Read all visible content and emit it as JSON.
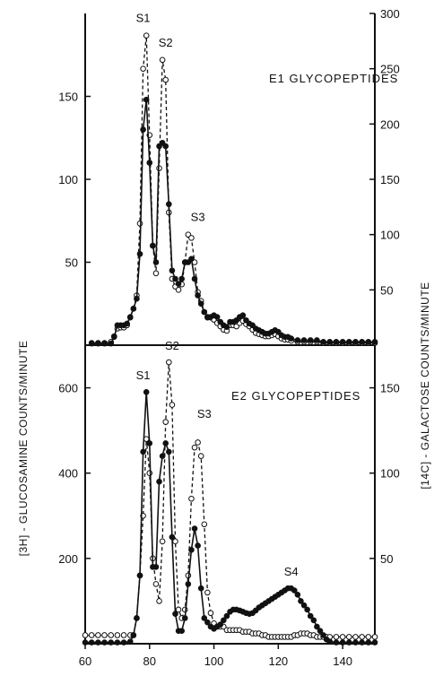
{
  "chart_data": [
    {
      "type": "line",
      "title": "E1 GLYCOPEPTIDES",
      "xlim": [
        60,
        150
      ],
      "ylim_left": [
        0,
        200
      ],
      "ylim_right": [
        0,
        300
      ],
      "left_ticks": [
        "50",
        "100",
        "150"
      ],
      "right_ticks": [
        "50",
        "100",
        "150",
        "200",
        "250",
        "300"
      ],
      "peak_labels": [
        {
          "text": "S1",
          "x": 78,
          "y": 195
        },
        {
          "text": "S2",
          "x": 85,
          "y": 180
        },
        {
          "text": "S3",
          "x": 95,
          "y": 75
        }
      ],
      "series": [
        {
          "axis": "left",
          "marker": "filled",
          "line": "solid",
          "x": [
            62,
            64,
            66,
            68,
            69,
            70,
            71,
            72,
            73,
            74,
            75,
            76,
            77,
            78,
            79,
            80,
            81,
            82,
            83,
            84,
            85,
            86,
            87,
            88,
            89,
            90,
            91,
            92,
            93,
            94,
            95,
            96,
            97,
            98,
            99,
            100,
            101,
            102,
            103,
            104,
            105,
            106,
            107,
            108,
            109,
            110,
            111,
            112,
            113,
            114,
            115,
            116,
            117,
            118,
            119,
            120,
            121,
            122,
            123,
            124,
            126,
            128,
            130,
            132,
            134,
            136,
            138,
            140,
            142,
            144,
            146,
            148,
            150
          ],
          "values": [
            1,
            1,
            1,
            1,
            5,
            12,
            12,
            12,
            13,
            17,
            22,
            28,
            55,
            130,
            148,
            110,
            60,
            50,
            120,
            122,
            120,
            85,
            45,
            40,
            37,
            40,
            50,
            50,
            52,
            40,
            30,
            25,
            20,
            17,
            17,
            18,
            17,
            14,
            12,
            11,
            14,
            14,
            15,
            17,
            18,
            15,
            13,
            12,
            10,
            9,
            8,
            7,
            7,
            8,
            9,
            8,
            6,
            5,
            5,
            4,
            3,
            3,
            3,
            3,
            2,
            2,
            2,
            2,
            2,
            2,
            2,
            2,
            2
          ]
        },
        {
          "axis": "right",
          "marker": "open",
          "line": "dashed",
          "x": [
            62,
            64,
            66,
            68,
            69,
            70,
            71,
            72,
            73,
            74,
            75,
            76,
            77,
            78,
            79,
            80,
            81,
            82,
            83,
            84,
            85,
            86,
            87,
            88,
            89,
            90,
            91,
            92,
            93,
            94,
            95,
            96,
            97,
            98,
            99,
            100,
            101,
            102,
            103,
            104,
            105,
            106,
            107,
            108,
            109,
            110,
            111,
            112,
            113,
            114,
            115,
            116,
            117,
            118,
            119,
            120,
            121,
            122,
            123,
            124,
            126,
            128,
            130,
            132,
            134,
            136,
            138,
            140,
            142,
            144,
            146,
            148,
            150
          ],
          "values": [
            2,
            2,
            2,
            3,
            8,
            15,
            16,
            16,
            18,
            25,
            33,
            45,
            110,
            250,
            280,
            190,
            90,
            65,
            160,
            258,
            240,
            120,
            60,
            53,
            50,
            55,
            75,
            100,
            97,
            75,
            48,
            40,
            30,
            25,
            25,
            23,
            20,
            17,
            14,
            13,
            18,
            18,
            17,
            20,
            22,
            19,
            17,
            14,
            11,
            10,
            9,
            8,
            8,
            9,
            10,
            8,
            6,
            5,
            5,
            4,
            3,
            3,
            3,
            3,
            2,
            2,
            2,
            2,
            2,
            2,
            2,
            2,
            2
          ]
        }
      ]
    },
    {
      "type": "line",
      "title": "E2 GLYCOPEPTIDES",
      "xlabel_ticks": [
        "60",
        "80",
        "100",
        "120",
        "140"
      ],
      "xlim": [
        60,
        150
      ],
      "ylim_left": [
        0,
        700
      ],
      "ylim_right": [
        0,
        175
      ],
      "left_ticks": [
        "200",
        "400",
        "600"
      ],
      "right_ticks": [
        "50",
        "100",
        "150"
      ],
      "peak_labels": [
        {
          "text": "S1",
          "x": 78,
          "y": 620
        },
        {
          "text": "S2",
          "x": 87,
          "y": 690
        },
        {
          "text": "S3",
          "x": 97,
          "y": 530
        },
        {
          "text": "S4",
          "x": 124,
          "y": 160
        }
      ],
      "series": [
        {
          "axis": "left",
          "marker": "filled",
          "line": "solid",
          "x": [
            60,
            62,
            64,
            66,
            68,
            70,
            72,
            74,
            75,
            76,
            77,
            78,
            79,
            80,
            81,
            82,
            83,
            84,
            85,
            86,
            87,
            88,
            89,
            90,
            91,
            92,
            93,
            94,
            95,
            96,
            97,
            98,
            99,
            100,
            101,
            102,
            103,
            104,
            105,
            106,
            107,
            108,
            109,
            110,
            111,
            112,
            113,
            114,
            115,
            116,
            117,
            118,
            119,
            120,
            121,
            122,
            123,
            124,
            125,
            126,
            127,
            128,
            129,
            130,
            131,
            132,
            133,
            134,
            135,
            136,
            138,
            140,
            142,
            144,
            146,
            148,
            150
          ],
          "values": [
            3,
            3,
            3,
            3,
            3,
            3,
            3,
            5,
            20,
            60,
            160,
            450,
            590,
            470,
            180,
            180,
            380,
            440,
            470,
            450,
            250,
            70,
            30,
            30,
            60,
            140,
            220,
            270,
            230,
            130,
            60,
            50,
            40,
            35,
            40,
            45,
            55,
            65,
            75,
            80,
            80,
            78,
            75,
            72,
            70,
            72,
            78,
            85,
            90,
            95,
            100,
            105,
            110,
            115,
            120,
            125,
            130,
            130,
            125,
            115,
            100,
            90,
            80,
            65,
            55,
            40,
            30,
            20,
            10,
            5,
            3,
            3,
            3,
            3,
            3,
            3,
            3
          ]
        },
        {
          "axis": "right",
          "marker": "open",
          "line": "dashed",
          "x": [
            60,
            62,
            64,
            66,
            68,
            70,
            72,
            74,
            75,
            76,
            77,
            78,
            79,
            80,
            81,
            82,
            83,
            84,
            85,
            86,
            87,
            88,
            89,
            90,
            91,
            92,
            93,
            94,
            95,
            96,
            97,
            98,
            99,
            100,
            101,
            102,
            103,
            104,
            105,
            106,
            107,
            108,
            109,
            110,
            111,
            112,
            113,
            114,
            115,
            116,
            117,
            118,
            119,
            120,
            121,
            122,
            123,
            124,
            125,
            126,
            127,
            128,
            129,
            130,
            131,
            132,
            133,
            134,
            135,
            136,
            138,
            140,
            142,
            144,
            146,
            148,
            150
          ],
          "values": [
            5,
            5,
            5,
            5,
            5,
            5,
            5,
            5,
            5,
            15,
            40,
            75,
            120,
            100,
            50,
            35,
            25,
            60,
            130,
            165,
            140,
            60,
            20,
            15,
            20,
            40,
            85,
            115,
            118,
            110,
            70,
            30,
            18,
            12,
            10,
            10,
            10,
            8,
            8,
            8,
            8,
            8,
            7,
            7,
            7,
            6,
            6,
            6,
            5,
            5,
            4,
            4,
            4,
            4,
            4,
            4,
            4,
            4,
            5,
            5,
            6,
            6,
            6,
            5,
            5,
            4,
            4,
            4,
            4,
            4,
            4,
            4,
            4,
            4,
            4,
            4,
            4
          ]
        }
      ]
    }
  ],
  "axes": {
    "left_label": "[3H] - GLUCOSAMINE COUNTS/MINUTE",
    "right_label": "[14C] - GALACTOSE COUNTS/MINUTE"
  }
}
